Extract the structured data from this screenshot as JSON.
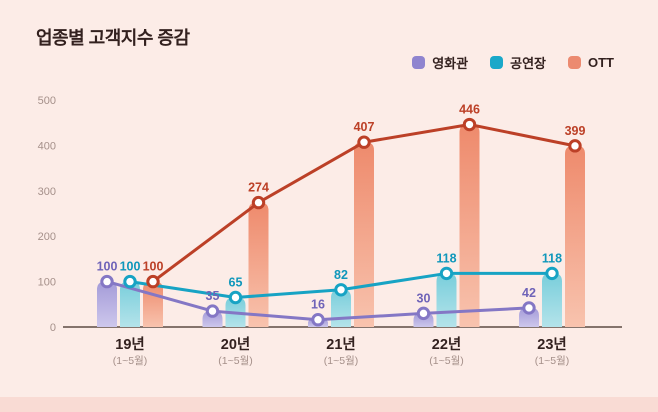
{
  "title": "업종별 고객지수 증감",
  "legend": {
    "items": [
      {
        "label": "영화관",
        "color": "#8f84cf"
      },
      {
        "label": "공연장",
        "color": "#1aa8c9"
      },
      {
        "label": "OTT",
        "color": "#ec8a70"
      }
    ]
  },
  "colors": {
    "background": "#fcece7",
    "footer_strip": "#f9dbd4",
    "title_text": "#33211f",
    "axis_text": "#a5908a",
    "baseline": "#5d4b44"
  },
  "chart_data": {
    "type": "bar+line",
    "title": "업종별 고객지수 증감",
    "categories": [
      "19년",
      "20년",
      "21년",
      "22년",
      "23년"
    ],
    "category_sublabels": [
      "(1~5월)",
      "(1~5월)",
      "(1~5월)",
      "(1~5월)",
      "(1~5월)"
    ],
    "yticks": [
      0,
      100,
      200,
      300,
      400,
      500
    ],
    "ylim": [
      0,
      500
    ],
    "grid": false,
    "legend_position": "top-right",
    "series": [
      {
        "id": "cinema",
        "name": "영화관",
        "values": [
          100,
          35,
          16,
          30,
          42
        ],
        "bar_top": "#a49bd8",
        "bar_bottom": "#cdc7ec",
        "line_color": "#8477c5",
        "label_color": "#6f63b8"
      },
      {
        "id": "concert-hall",
        "name": "공연장",
        "values": [
          100,
          65,
          82,
          118,
          118
        ],
        "bar_top": "#79cedb",
        "bar_bottom": "#b4e3ea",
        "line_color": "#17a3c4",
        "label_color": "#0f97bb"
      },
      {
        "id": "ott",
        "name": "OTT",
        "values": [
          100,
          274,
          407,
          446,
          399
        ],
        "bar_top": "#ee8a6c",
        "bar_bottom": "#f8c3ae",
        "line_color": "#bc4027",
        "label_color": "#bc4027"
      }
    ]
  }
}
